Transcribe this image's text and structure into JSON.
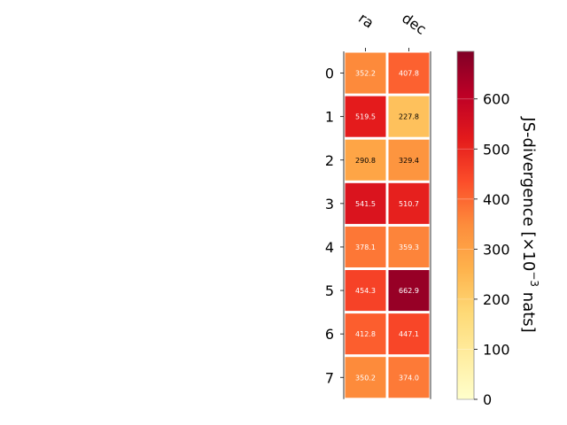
{
  "chart_data": {
    "type": "heatmap",
    "columns": [
      "ra",
      "dec"
    ],
    "rows": [
      "0",
      "1",
      "2",
      "3",
      "4",
      "5",
      "6",
      "7"
    ],
    "values": [
      [
        352.2,
        407.8
      ],
      [
        519.5,
        227.8
      ],
      [
        290.8,
        329.4
      ],
      [
        541.5,
        510.7
      ],
      [
        378.1,
        359.3
      ],
      [
        454.3,
        662.9
      ],
      [
        412.8,
        447.1
      ],
      [
        350.2,
        374.0
      ]
    ],
    "cell_labels": [
      [
        "352.2",
        "407.8"
      ],
      [
        "519.5",
        "227.8"
      ],
      [
        "290.8",
        "329.4"
      ],
      [
        "541.5",
        "510.7"
      ],
      [
        "378.1",
        "359.3"
      ],
      [
        "454.3",
        "662.9"
      ],
      [
        "412.8",
        "447.1"
      ],
      [
        "350.2",
        "374.0"
      ]
    ],
    "colorbar": {
      "label_main": "JS-divergence [×10",
      "label_exp": "−3",
      "label_unit": " nats]",
      "vmin": 0,
      "vmax": 695,
      "ticks": [
        0,
        100,
        200,
        300,
        400,
        500,
        600
      ],
      "colormap": "YlOrRd"
    }
  }
}
